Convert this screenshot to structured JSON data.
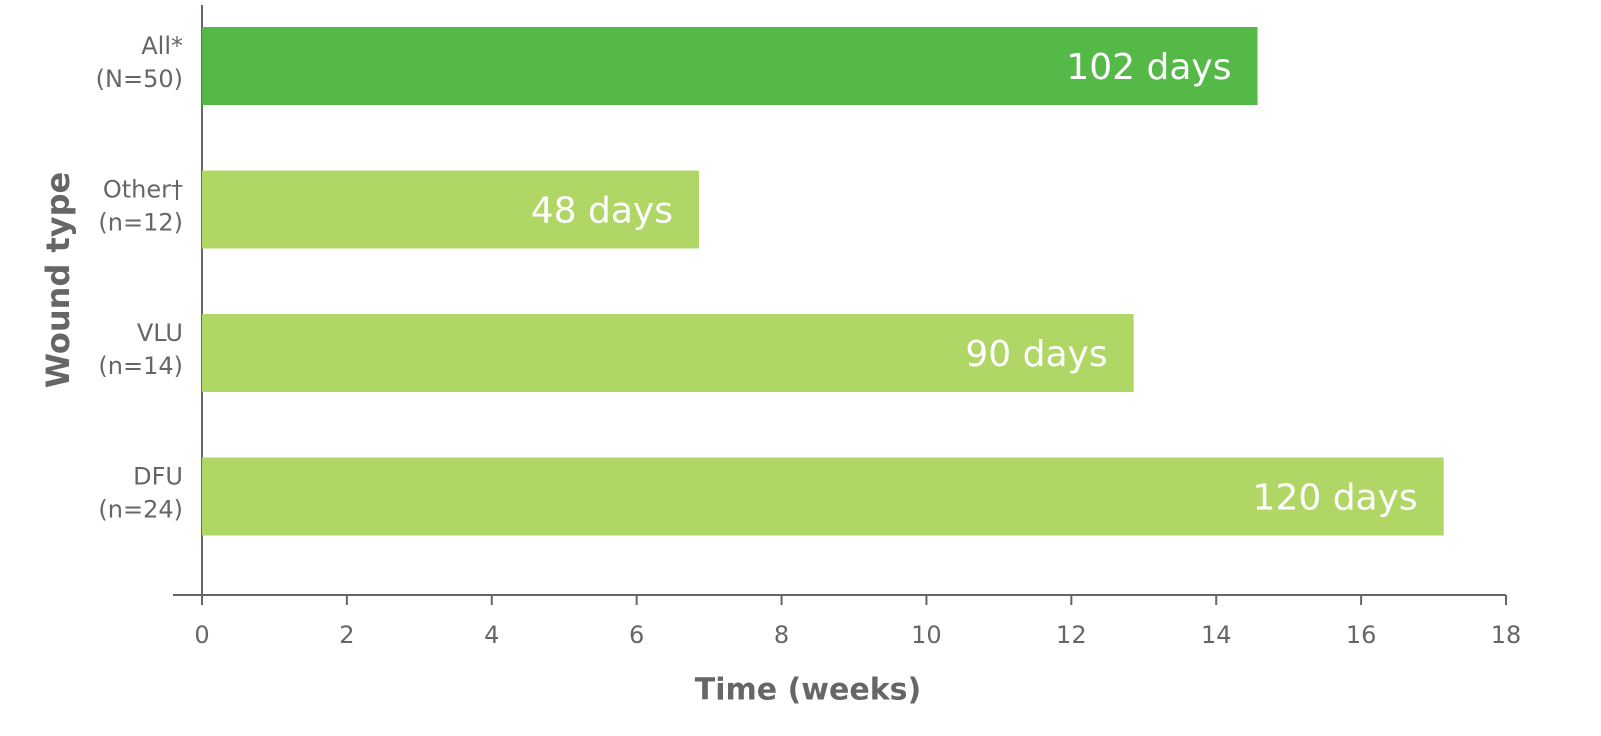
{
  "chart_data": {
    "type": "hbar",
    "y_label": "Wound type",
    "x_label": "Time (weeks)",
    "categories": [
      "All*",
      "Other†",
      "VLU",
      "DFU"
    ],
    "category_counts": [
      "(N=50)",
      "(n=12)",
      "(n=14)",
      "(n=24)"
    ],
    "values": [
      14.57,
      6.86,
      12.86,
      17.14
    ],
    "value_labels": [
      "102 days",
      "48 days",
      "90 days",
      "120 days"
    ],
    "colors": [
      "#55b947",
      "#b0d766",
      "#b0d766",
      "#b0d766"
    ],
    "xlim": [
      0,
      18
    ],
    "xticks": [
      0,
      2,
      4,
      6,
      8,
      10,
      12,
      14,
      16,
      18
    ]
  }
}
